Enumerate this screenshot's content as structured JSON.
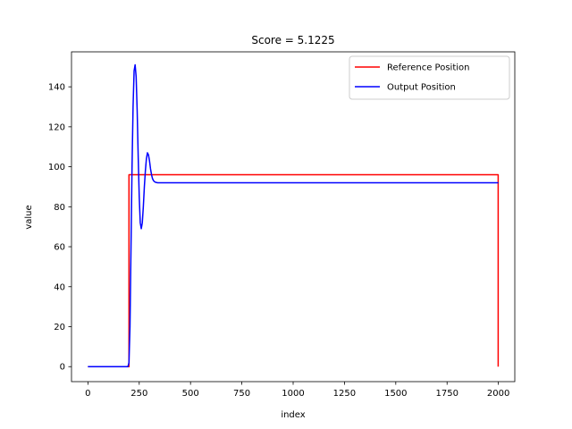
{
  "chart_data": {
    "type": "line",
    "title": "Score = 5.1225",
    "xlabel": "index",
    "ylabel": "value",
    "xlim": [
      -80,
      2080
    ],
    "ylim": [
      -7.5,
      157.5
    ],
    "xticks": [
      0,
      250,
      500,
      750,
      1000,
      1250,
      1500,
      1750,
      2000
    ],
    "yticks": [
      0,
      20,
      40,
      60,
      80,
      100,
      120,
      140
    ],
    "grid": false,
    "legend_position": "top-right",
    "series": [
      {
        "name": "Reference Position",
        "color": "#ff0000",
        "x": [
          0,
          200,
          200,
          1999,
          1999
        ],
        "y": [
          0,
          0,
          96,
          96,
          0
        ]
      },
      {
        "name": "Output Position",
        "color": "#0000ff",
        "x": [
          0,
          195,
          200,
          205,
          210,
          215,
          220,
          225,
          230,
          235,
          240,
          245,
          250,
          255,
          260,
          265,
          270,
          275,
          280,
          285,
          290,
          295,
          300,
          305,
          310,
          315,
          320,
          325,
          330,
          335,
          340,
          345,
          350,
          400,
          600,
          1000,
          1500,
          2000
        ],
        "y": [
          0,
          0,
          2,
          20,
          60,
          100,
          130,
          148,
          151,
          145,
          128,
          105,
          85,
          72,
          69,
          72,
          80,
          90,
          98,
          104,
          107,
          106,
          103,
          99,
          96,
          94,
          93,
          92.5,
          92.2,
          92.1,
          92,
          92,
          92,
          92,
          92,
          92,
          92,
          92
        ]
      }
    ]
  }
}
